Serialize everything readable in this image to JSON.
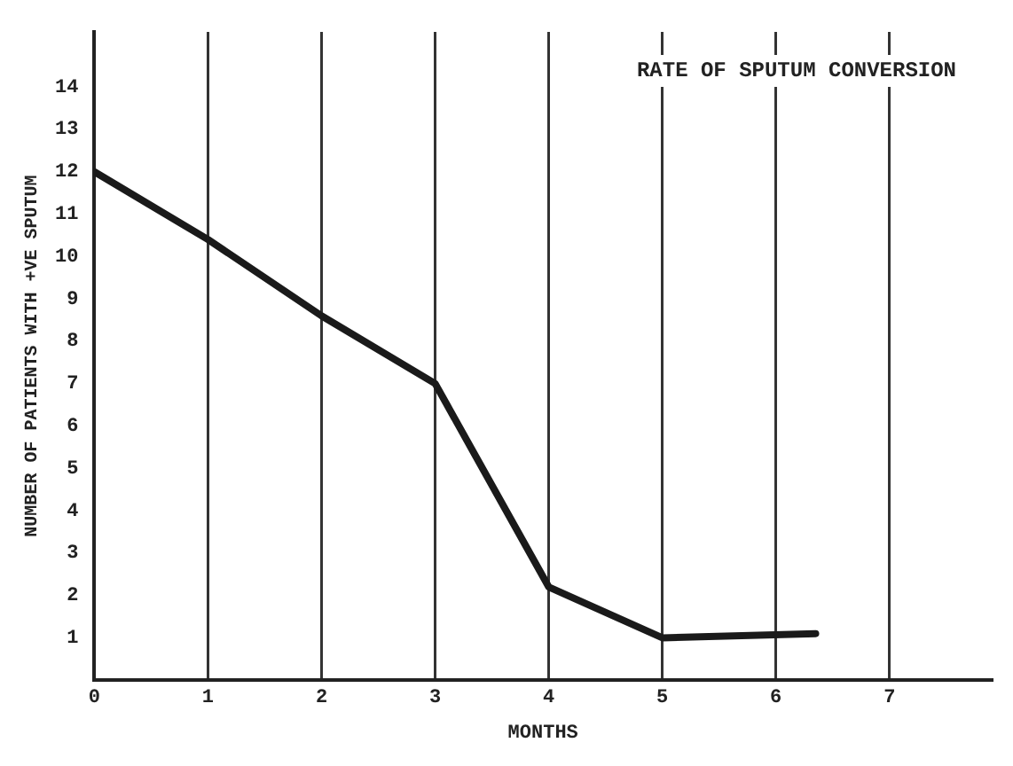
{
  "chart_data": {
    "type": "line",
    "title": "RATE OF SPUTUM CONVERSION",
    "xlabel": "MONTHS",
    "ylabel": "NUMBER OF PATIENTS WITH +VE SPUTUM",
    "series": [
      {
        "color": "#1a1a1a",
        "x": [
          0,
          1,
          2,
          3,
          4,
          5,
          6.35
        ],
        "values": [
          12,
          10.4,
          8.6,
          7,
          2.2,
          1,
          1.1
        ]
      }
    ],
    "xlim": [
      0,
      7.9
    ],
    "xticks": [
      0,
      1,
      2,
      3,
      4,
      5,
      6,
      7
    ],
    "ylim": [
      0,
      15.3
    ],
    "yticks": [
      1,
      2,
      3,
      4,
      5,
      6,
      7,
      8,
      9,
      10,
      11,
      12,
      13,
      14
    ],
    "grid": "x",
    "legend": false,
    "marker": "none",
    "line_style": "solid"
  }
}
